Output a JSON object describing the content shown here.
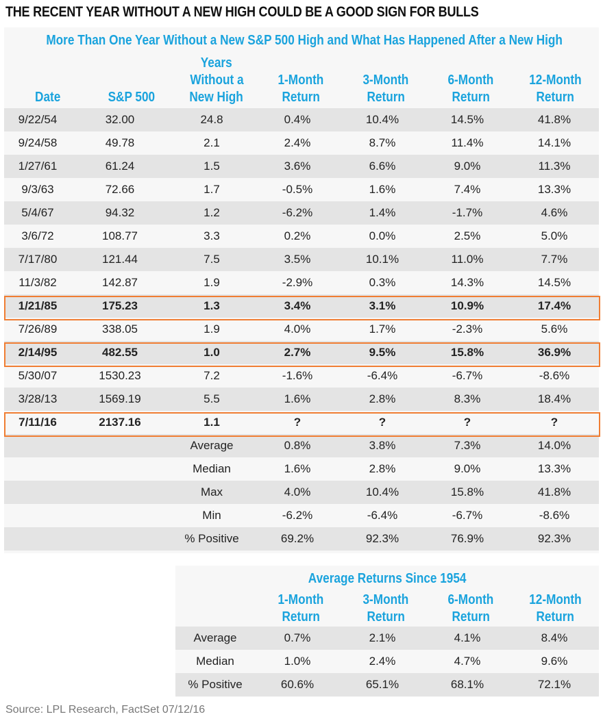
{
  "title": "THE RECENT YEAR WITHOUT A NEW HIGH COULD BE A GOOD SIGN FOR BULLS",
  "main_table": {
    "subtitle": "More Than One Year Without a New S&P 500 High and What Has Happened After a New High",
    "headers": [
      [
        "Date"
      ],
      [
        "S&P 500"
      ],
      [
        "Years",
        "Without a",
        "New High"
      ],
      [
        "1-Month",
        "Return"
      ],
      [
        "3-Month",
        "Return"
      ],
      [
        "6-Month",
        "Return"
      ],
      [
        "12-Month",
        "Return"
      ]
    ],
    "rows": [
      [
        "9/22/54",
        "32.00",
        "24.8",
        "0.4%",
        "10.4%",
        "14.5%",
        "41.8%"
      ],
      [
        "9/24/58",
        "49.78",
        "2.1",
        "2.4%",
        "8.7%",
        "11.4%",
        "14.1%"
      ],
      [
        "1/27/61",
        "61.24",
        "1.5",
        "3.6%",
        "6.6%",
        "9.0%",
        "11.3%"
      ],
      [
        "9/3/63",
        "72.66",
        "1.7",
        "-0.5%",
        "1.6%",
        "7.4%",
        "13.3%"
      ],
      [
        "5/4/67",
        "94.32",
        "1.2",
        "-6.2%",
        "1.4%",
        "-1.7%",
        "4.6%"
      ],
      [
        "3/6/72",
        "108.77",
        "3.3",
        "0.2%",
        "0.0%",
        "2.5%",
        "5.0%"
      ],
      [
        "7/17/80",
        "121.44",
        "7.5",
        "3.5%",
        "10.1%",
        "11.0%",
        "7.7%"
      ],
      [
        "11/3/82",
        "142.87",
        "1.9",
        "-2.9%",
        "0.3%",
        "14.3%",
        "14.5%"
      ],
      [
        "1/21/85",
        "175.23",
        "1.3",
        "3.4%",
        "3.1%",
        "10.9%",
        "17.4%"
      ],
      [
        "7/26/89",
        "338.05",
        "1.9",
        "4.0%",
        "1.7%",
        "-2.3%",
        "5.6%"
      ],
      [
        "2/14/95",
        "482.55",
        "1.0",
        "2.7%",
        "9.5%",
        "15.8%",
        "36.9%"
      ],
      [
        "5/30/07",
        "1530.23",
        "7.2",
        "-1.6%",
        "-6.4%",
        "-6.7%",
        "-8.6%"
      ],
      [
        "3/28/13",
        "1569.19",
        "5.5",
        "1.6%",
        "2.8%",
        "8.3%",
        "18.4%"
      ],
      [
        "7/11/16",
        "2137.16",
        "1.1",
        "?",
        "?",
        "?",
        "?"
      ]
    ],
    "highlighted_rows": [
      8,
      10,
      13
    ],
    "summary": [
      [
        "Average",
        "0.8%",
        "3.8%",
        "7.3%",
        "14.0%"
      ],
      [
        "Median",
        "1.6%",
        "2.8%",
        "9.0%",
        "13.3%"
      ],
      [
        "Max",
        "4.0%",
        "10.4%",
        "15.8%",
        "41.8%"
      ],
      [
        "Min",
        "-6.2%",
        "-6.4%",
        "-6.7%",
        "-8.6%"
      ],
      [
        "% Positive",
        "69.2%",
        "92.3%",
        "76.9%",
        "92.3%"
      ]
    ]
  },
  "average_table": {
    "subtitle": "Average Returns Since 1954",
    "headers": [
      [
        "1-Month",
        "Return"
      ],
      [
        "3-Month",
        "Return"
      ],
      [
        "6-Month",
        "Return"
      ],
      [
        "12-Month",
        "Return"
      ]
    ],
    "rows": [
      [
        "Average",
        "0.7%",
        "2.1%",
        "4.1%",
        "8.4%"
      ],
      [
        "Median",
        "1.0%",
        "2.4%",
        "4.7%",
        "9.6%"
      ],
      [
        "% Positive",
        "60.6%",
        "65.1%",
        "68.1%",
        "72.1%"
      ]
    ]
  },
  "source": "Source: LPL Research, FactSet   07/12/16",
  "colors": {
    "accent": "#1aa3dd",
    "highlight_border": "#f07d32",
    "row_shade": "#e4e4e4",
    "row_plain": "#f7f7f7"
  }
}
